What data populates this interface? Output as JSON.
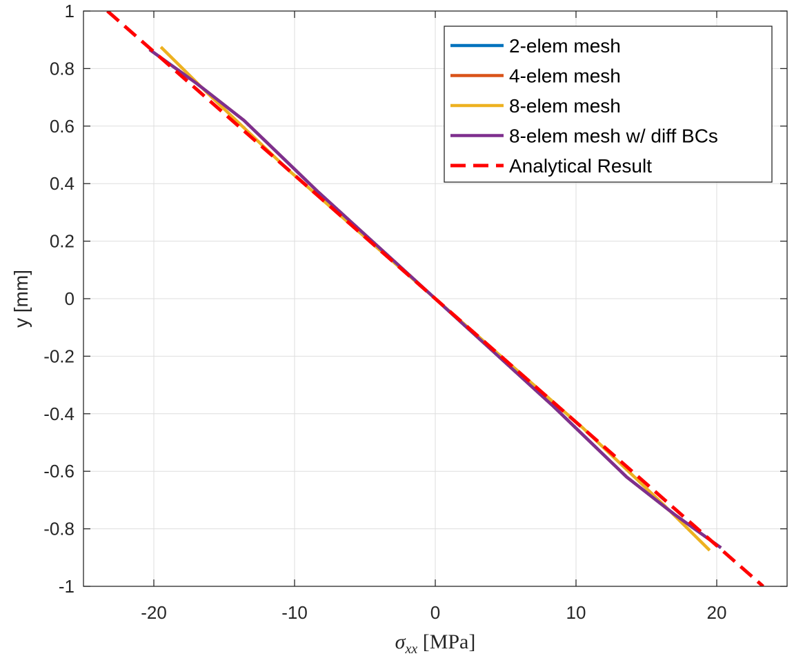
{
  "chart_data": {
    "type": "line",
    "title": "",
    "xlabel": "σ_xx [MPa]",
    "xlabel_parts": {
      "symbol": "σ",
      "subscript": "xx",
      "unit": " [MPa]"
    },
    "ylabel": "y [mm]",
    "xlim": [
      -25,
      25
    ],
    "ylim": [
      -1,
      1
    ],
    "xticks": [
      -20,
      -10,
      0,
      10,
      20
    ],
    "xtick_labels": [
      "-20",
      "-10",
      "0",
      "10",
      "20"
    ],
    "yticks": [
      -1,
      -0.8,
      -0.6,
      -0.4,
      -0.2,
      0,
      0.2,
      0.4,
      0.6,
      0.8,
      1
    ],
    "ytick_labels": [
      "-1",
      "-0.8",
      "-0.6",
      "-0.4",
      "-0.2",
      "0",
      "0.2",
      "0.4",
      "0.6",
      "0.8",
      "1"
    ],
    "grid": true,
    "legend_position": "top-right",
    "series": [
      {
        "name": "2-elem mesh",
        "color": "#0072BD",
        "dash": "solid",
        "points": [
          [
            -20.3,
            0.866
          ],
          [
            -17.0,
            0.75
          ],
          [
            -13.6,
            0.62
          ],
          [
            -8.3,
            0.37
          ],
          [
            0,
            0
          ],
          [
            8.3,
            -0.37
          ],
          [
            13.6,
            -0.62
          ],
          [
            17.0,
            -0.75
          ],
          [
            20.3,
            -0.866
          ]
        ]
      },
      {
        "name": "4-elem mesh",
        "color": "#D95319",
        "dash": "solid",
        "points": [
          [
            -20.3,
            0.866
          ],
          [
            -17.0,
            0.75
          ],
          [
            -13.6,
            0.62
          ],
          [
            -8.3,
            0.37
          ],
          [
            0,
            0
          ],
          [
            8.3,
            -0.37
          ],
          [
            13.6,
            -0.62
          ],
          [
            17.0,
            -0.75
          ],
          [
            20.3,
            -0.866
          ]
        ]
      },
      {
        "name": "8-elem mesh",
        "color": "#EDB120",
        "dash": "solid",
        "points": [
          [
            -19.5,
            0.875
          ],
          [
            -16.3,
            0.72
          ],
          [
            -10.5,
            0.45
          ],
          [
            0,
            0
          ],
          [
            10.5,
            -0.45
          ],
          [
            16.3,
            -0.72
          ],
          [
            19.5,
            -0.875
          ]
        ]
      },
      {
        "name": "8-elem mesh w/ diff BCs",
        "color": "#7E2F8E",
        "dash": "solid",
        "points": [
          [
            -20.3,
            0.866
          ],
          [
            -17.0,
            0.75
          ],
          [
            -13.6,
            0.62
          ],
          [
            -8.3,
            0.37
          ],
          [
            0,
            0
          ],
          [
            8.3,
            -0.37
          ],
          [
            13.6,
            -0.62
          ],
          [
            17.0,
            -0.75
          ],
          [
            20.3,
            -0.866
          ]
        ]
      },
      {
        "name": "Analytical Result",
        "color": "#FF0000",
        "dash": "dashed",
        "points": [
          [
            -23.3,
            1.0
          ],
          [
            23.3,
            -1.0
          ]
        ]
      }
    ]
  }
}
